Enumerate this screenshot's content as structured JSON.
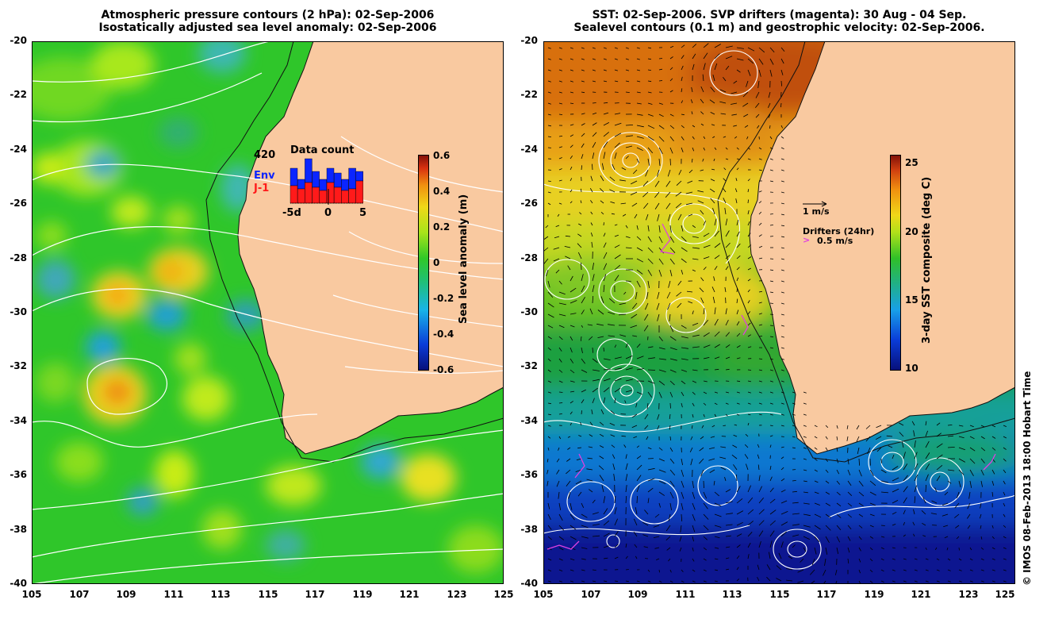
{
  "left_panel": {
    "title_line1": "Atmospheric pressure contours (2 hPa): 02-Sep-2006",
    "title_line2": "Isostatically adjusted sea level anomaly: 02-Sep-2006",
    "colorbar_label": "Sea level anomaly (m)",
    "colorbar_ticks": [
      "0.6",
      "0.4",
      "0.2",
      "0",
      "-0.2",
      "-0.4",
      "-0.6"
    ],
    "inset": {
      "title": "Data count",
      "max_value": "420",
      "legend_env": "Env",
      "legend_j1": "J-1",
      "x_ticks": [
        "-5d",
        "0",
        "5"
      ],
      "env_color": "#0b25ff",
      "j1_color": "#ff1a1a"
    }
  },
  "right_panel": {
    "title_line1": "SST: 02-Sep-2006. SVP drifters (magenta): 30 Aug - 04 Sep.",
    "title_line2": "Sealevel contours (0.1 m) and geostrophic velocity: 02-Sep-2006.",
    "colorbar_label": "3-day SST composite (deg C)",
    "colorbar_ticks": [
      "25",
      "20",
      "15",
      "10"
    ],
    "legend_velocity": "1 m/s",
    "legend_drifters": "Drifters (24hr)",
    "legend_drifter_speed": "0.5 m/s"
  },
  "y_axis_ticks": [
    "-20",
    "-22",
    "-24",
    "-26",
    "-28",
    "-30",
    "-32",
    "-34",
    "-36",
    "-38",
    "-40"
  ],
  "x_axis_ticks": [
    "105",
    "107",
    "109",
    "111",
    "113",
    "115",
    "117",
    "119",
    "121",
    "123",
    "125"
  ],
  "credit": "© IMOS 08-Feb-2013 18:00 Hobart Time",
  "colors": {
    "land": "#f9c9a0",
    "ocean_base_left": "#22c21e",
    "drifter": "#e040e0"
  }
}
